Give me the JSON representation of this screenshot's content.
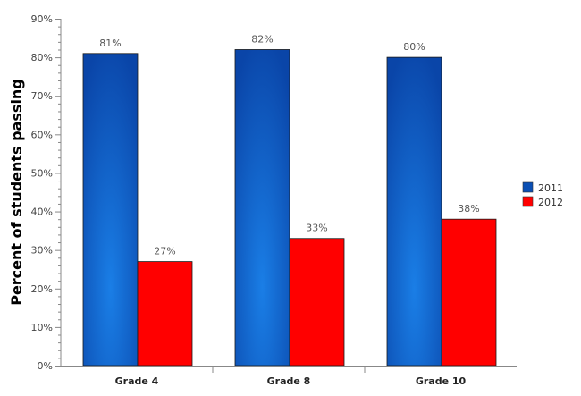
{
  "chart_data": {
    "type": "bar",
    "title": "",
    "xlabel": "",
    "ylabel": "Percent of students passing",
    "categories": [
      "Grade 4",
      "Grade 8",
      "Grade 10"
    ],
    "series": [
      {
        "name": "2011",
        "values": [
          81,
          82,
          80
        ],
        "labels": [
          "81%",
          "82%",
          "80%"
        ],
        "color": "#0a4fb4"
      },
      {
        "name": "2012",
        "values": [
          27,
          33,
          38
        ],
        "labels": [
          "27%",
          "33%",
          "38%"
        ],
        "color": "#ff0000"
      }
    ],
    "ylim": [
      0,
      90
    ],
    "yticks": [
      0,
      10,
      20,
      30,
      40,
      50,
      60,
      70,
      80,
      90
    ],
    "ytick_labels": [
      "0%",
      "10%",
      "20%",
      "30%",
      "40%",
      "50%",
      "60%",
      "70%",
      "80%",
      "90%"
    ],
    "grid": false,
    "legend_position": "right"
  }
}
